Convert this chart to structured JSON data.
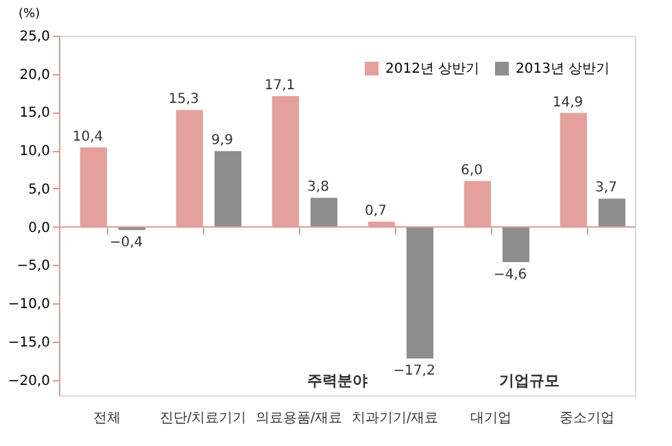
{
  "chart_data": {
    "type": "bar",
    "ylabel": "(%)",
    "categories": [
      "전체",
      "진단/치료기기",
      "의료용품/재료",
      "치과기기/재료",
      "대기업",
      "중소기업"
    ],
    "series": [
      {
        "name": "2012년 상반기",
        "color": "#e6a09c",
        "values": [
          10.4,
          15.3,
          17.1,
          0.7,
          6.0,
          14.9
        ],
        "value_labels": [
          "10,4",
          "15,3",
          "17,1",
          "0,7",
          "6,0",
          "14,9"
        ]
      },
      {
        "name": "2013년 상반기",
        "color": "#8e8e8e",
        "values": [
          -0.4,
          9.9,
          3.8,
          -17.2,
          -4.6,
          3.7
        ],
        "value_labels": [
          "−0,4",
          "9,9",
          "3,8",
          "−17,2",
          "−4,6",
          "3,7"
        ]
      }
    ],
    "ylim": [
      -22,
      25
    ],
    "yticks": [
      {
        "value": 25,
        "label": "25,0"
      },
      {
        "value": 20,
        "label": "20,0"
      },
      {
        "value": 15,
        "label": "15,0"
      },
      {
        "value": 10,
        "label": "10,0"
      },
      {
        "value": 5,
        "label": "5,0"
      },
      {
        "value": 0,
        "label": "0,0"
      },
      {
        "value": -5,
        "label": "−5,0"
      },
      {
        "value": -10,
        "label": "−10,0"
      },
      {
        "value": -15,
        "label": "−15,0"
      },
      {
        "value": -20,
        "label": "−20,0"
      }
    ],
    "annotations": [
      "주력분야",
      "기업규모"
    ],
    "ref_lines": [
      {
        "axis": "y",
        "value": 0,
        "color": "#d89a96"
      }
    ],
    "legend": "top right",
    "grid": false
  }
}
